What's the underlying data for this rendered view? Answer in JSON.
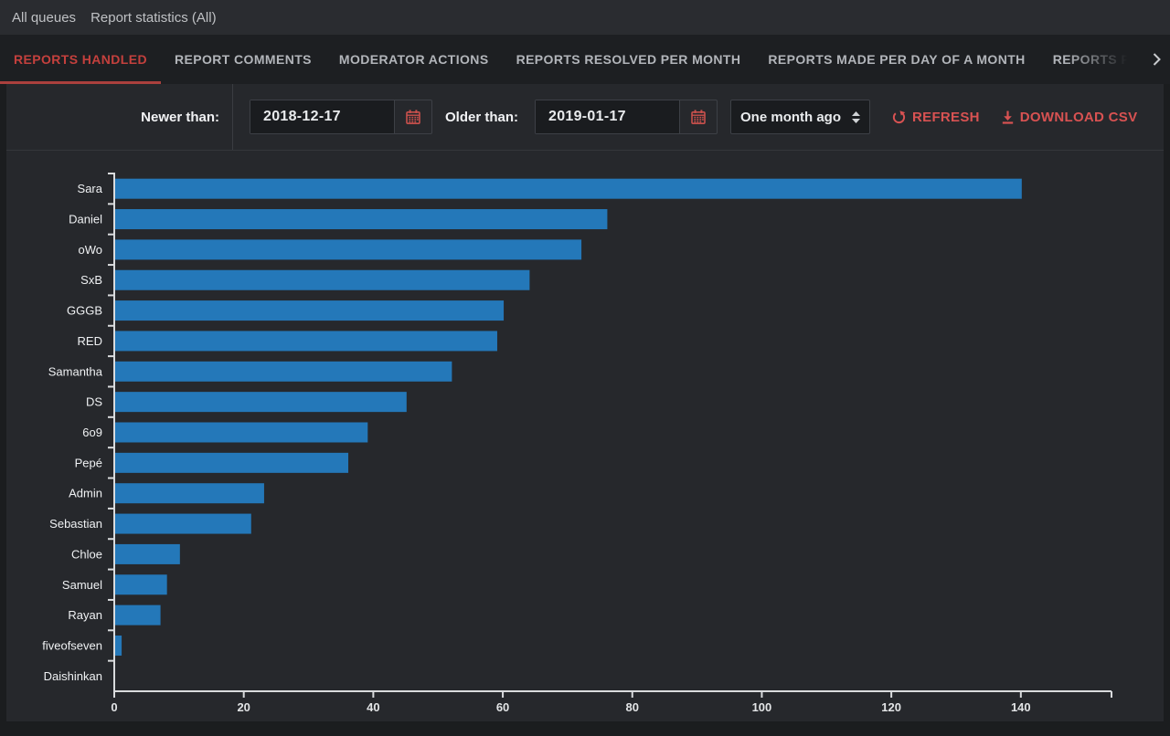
{
  "breadcrumb": {
    "items": [
      "All queues",
      "Report statistics (All)"
    ]
  },
  "tabs": [
    {
      "label": "REPORTS HANDLED",
      "active": true
    },
    {
      "label": "REPORT COMMENTS",
      "active": false
    },
    {
      "label": "MODERATOR ACTIONS",
      "active": false
    },
    {
      "label": "REPORTS RESOLVED PER MONTH",
      "active": false
    },
    {
      "label": "REPORTS MADE PER DAY OF A MONTH",
      "active": false
    },
    {
      "label": "REPORTS PER",
      "active": false,
      "truncated": true
    }
  ],
  "filters": {
    "newer_label": "Newer than:",
    "newer_value": "2018-12-17",
    "older_label": "Older than:",
    "older_value": "2019-01-17",
    "range_selected": "One month ago",
    "refresh_label": "REFRESH",
    "download_label": "DOWNLOAD CSV"
  },
  "icons": {
    "calendar": "calendar-icon",
    "refresh": "refresh-icon",
    "download": "download-icon",
    "select_arrows": "up-down-arrows-icon",
    "overflow": "chevron-right-icon"
  },
  "colors": {
    "active_tab_red": "#c4403d",
    "tab_underline_red": "#ab403d",
    "action_red": "#d85252",
    "bar_blue": "#2478b9",
    "axis": "#d9dbdd",
    "panel_bg": "#26282c",
    "tabbar_bg": "#1d1f22",
    "input_bg": "#1a1c1f"
  },
  "chart_data": {
    "type": "bar",
    "orientation": "horizontal",
    "title": "",
    "xlabel": "",
    "ylabel": "",
    "categories": [
      "Sara",
      "Daniel",
      "oWo",
      "SxB",
      "GGGB",
      "RED",
      "Samantha",
      "DS",
      "6o9",
      "Pepé",
      "Admin",
      "Sebastian",
      "Chloe",
      "Samuel",
      "Rayan",
      "fiveofseven",
      "Daishinkan"
    ],
    "values": [
      140,
      76,
      72,
      64,
      60,
      59,
      52,
      45,
      39,
      36,
      23,
      21,
      10,
      8,
      7,
      1,
      0
    ],
    "xticks": [
      0,
      20,
      40,
      60,
      80,
      100,
      120,
      140
    ],
    "xlim": [
      0,
      154
    ],
    "grid": false,
    "legend": false,
    "bar_color": "#2478b9"
  }
}
